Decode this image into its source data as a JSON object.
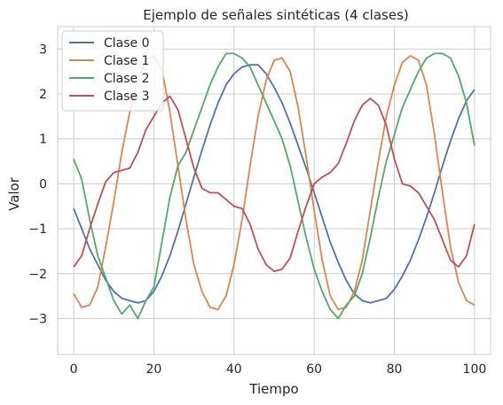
{
  "chart_data": {
    "type": "line",
    "title": "Ejemplo de señales sintéticas (4 clases)",
    "xlabel": "Tiempo",
    "ylabel": "Valor",
    "xlim": [
      -4,
      104
    ],
    "ylim": [
      -3.8,
      3.5
    ],
    "xticks": [
      0,
      20,
      40,
      60,
      80,
      100
    ],
    "xtick_labels": [
      "0",
      "20",
      "40",
      "60",
      "80",
      "100"
    ],
    "yticks": [
      -3,
      -2,
      -1,
      0,
      1,
      2,
      3
    ],
    "ytick_labels": [
      "−3",
      "−2",
      "−1",
      "0",
      "1",
      "2",
      "3"
    ],
    "grid": true,
    "legend_position": "top-left",
    "series": [
      {
        "name": "Clase 0",
        "color": "#4c72b0",
        "x": [
          0,
          2,
          4,
          6,
          8,
          10,
          12,
          14,
          16,
          18,
          20,
          22,
          24,
          26,
          28,
          30,
          32,
          34,
          36,
          38,
          40,
          42,
          44,
          46,
          48,
          50,
          52,
          54,
          56,
          58,
          60,
          62,
          64,
          66,
          68,
          70,
          72,
          74,
          76,
          78,
          80,
          82,
          84,
          86,
          88,
          90,
          92,
          94,
          96,
          98,
          100
        ],
        "y": [
          -0.55,
          -1.0,
          -1.45,
          -1.8,
          -2.15,
          -2.4,
          -2.55,
          -2.6,
          -2.65,
          -2.6,
          -2.4,
          -2.05,
          -1.6,
          -1.05,
          -0.45,
          0.15,
          0.75,
          1.3,
          1.8,
          2.2,
          2.45,
          2.6,
          2.65,
          2.65,
          2.45,
          2.15,
          1.8,
          1.35,
          0.85,
          0.35,
          -0.2,
          -0.75,
          -1.3,
          -1.75,
          -2.15,
          -2.45,
          -2.6,
          -2.65,
          -2.6,
          -2.55,
          -2.35,
          -2.05,
          -1.7,
          -1.25,
          -0.75,
          -0.2,
          0.4,
          0.95,
          1.45,
          1.85,
          2.1
        ]
      },
      {
        "name": "Clase 1",
        "color": "#dd8452",
        "x": [
          0,
          2,
          4,
          6,
          8,
          10,
          12,
          14,
          16,
          18,
          20,
          22,
          24,
          26,
          28,
          30,
          32,
          34,
          36,
          38,
          40,
          42,
          44,
          46,
          48,
          50,
          52,
          54,
          56,
          58,
          60,
          62,
          64,
          66,
          68,
          70,
          72,
          74,
          76,
          78,
          80,
          82,
          84,
          86,
          88,
          90,
          92,
          94,
          96,
          98,
          100
        ],
        "y": [
          -2.45,
          -2.75,
          -2.7,
          -2.3,
          -1.4,
          -0.4,
          0.7,
          1.6,
          2.3,
          2.75,
          2.85,
          2.55,
          1.6,
          0.4,
          -0.8,
          -1.8,
          -2.4,
          -2.75,
          -2.8,
          -2.5,
          -1.8,
          -0.8,
          0.4,
          1.5,
          2.3,
          2.75,
          2.8,
          2.5,
          1.7,
          0.6,
          -0.6,
          -1.7,
          -2.5,
          -2.8,
          -2.75,
          -2.4,
          -1.7,
          -0.6,
          0.5,
          1.5,
          2.2,
          2.7,
          2.85,
          2.75,
          2.2,
          1.1,
          -0.2,
          -1.4,
          -2.2,
          -2.6,
          -2.7
        ]
      },
      {
        "name": "Clase 2",
        "color": "#55a868",
        "x": [
          0,
          2,
          4,
          6,
          8,
          10,
          12,
          14,
          16,
          18,
          20,
          22,
          24,
          26,
          28,
          30,
          32,
          34,
          36,
          38,
          40,
          42,
          44,
          46,
          48,
          50,
          52,
          54,
          56,
          58,
          60,
          62,
          64,
          66,
          68,
          70,
          72,
          74,
          76,
          78,
          80,
          82,
          84,
          86,
          88,
          90,
          92,
          94,
          96,
          98,
          100
        ],
        "y": [
          0.55,
          0.1,
          -0.8,
          -1.6,
          -2.1,
          -2.6,
          -2.9,
          -2.7,
          -3.0,
          -2.6,
          -2.3,
          -1.3,
          -0.3,
          0.4,
          0.7,
          1.2,
          1.7,
          2.2,
          2.6,
          2.9,
          2.9,
          2.8,
          2.6,
          2.2,
          1.8,
          1.4,
          1.0,
          0.4,
          -0.4,
          -1.2,
          -1.9,
          -2.4,
          -2.8,
          -3.0,
          -2.7,
          -2.5,
          -2.0,
          -1.2,
          -0.3,
          0.5,
          1.1,
          1.7,
          2.1,
          2.5,
          2.8,
          2.9,
          2.9,
          2.8,
          2.4,
          1.8,
          0.85
        ]
      },
      {
        "name": "Clase 3",
        "color": "#c44e52",
        "x": [
          0,
          2,
          4,
          6,
          8,
          10,
          12,
          14,
          16,
          18,
          20,
          22,
          24,
          26,
          28,
          30,
          32,
          34,
          36,
          38,
          40,
          42,
          44,
          46,
          48,
          50,
          52,
          54,
          56,
          58,
          60,
          62,
          64,
          66,
          68,
          70,
          72,
          74,
          76,
          78,
          80,
          82,
          84,
          86,
          88,
          90,
          92,
          94,
          96,
          98,
          100
        ],
        "y": [
          -1.85,
          -1.6,
          -1.0,
          -0.45,
          0.05,
          0.25,
          0.3,
          0.35,
          0.7,
          1.2,
          1.5,
          1.8,
          1.95,
          1.65,
          1.0,
          0.35,
          -0.1,
          -0.2,
          -0.2,
          -0.35,
          -0.5,
          -0.55,
          -0.9,
          -1.45,
          -1.8,
          -1.95,
          -1.9,
          -1.65,
          -1.05,
          -0.5,
          0.0,
          0.15,
          0.25,
          0.45,
          0.9,
          1.4,
          1.75,
          1.9,
          1.75,
          1.3,
          0.55,
          0.0,
          -0.05,
          -0.2,
          -0.5,
          -0.8,
          -1.25,
          -1.7,
          -1.85,
          -1.6,
          -0.9
        ]
      }
    ]
  }
}
